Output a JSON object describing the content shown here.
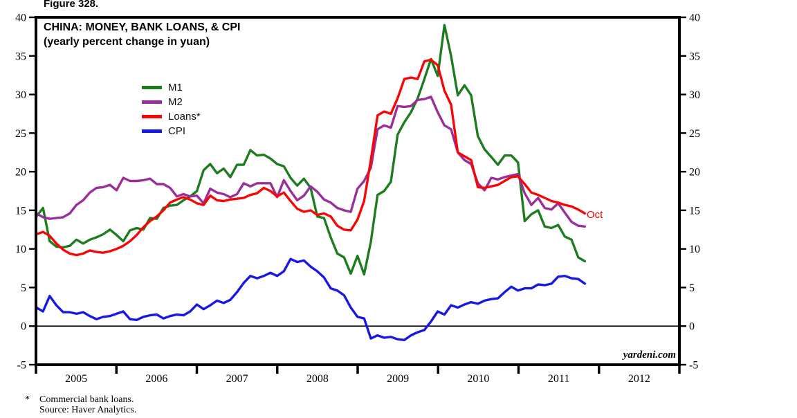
{
  "figure_label": "Figure 328.",
  "header": {
    "title": "CHINA: MONEY, BANK LOANS, & CPI",
    "subtitle": "(yearly percent change in yuan)"
  },
  "watermark": "yardeni.com",
  "footnote": {
    "marker": "*",
    "line1": "Commercial bank loans.",
    "line2": "Source: Haver Analytics."
  },
  "chart_data": {
    "type": "line",
    "title": "CHINA: MONEY, BANK LOANS, & CPI",
    "subtitle": "(yearly percent change in yuan)",
    "x_unit": "month",
    "x_start": "2004-12",
    "x_end": "2011-10",
    "x_tick_years": [
      "2005",
      "2006",
      "2007",
      "2008",
      "2009",
      "2010",
      "2011",
      "2012"
    ],
    "ylim": [
      -5,
      40
    ],
    "y_ticks": [
      40,
      35,
      30,
      25,
      20,
      15,
      10,
      5,
      0,
      -5
    ],
    "y_tick_step": 5,
    "grid": false,
    "zero_line": true,
    "legend_position": "upper-left-inside",
    "axis_color": "#000000",
    "annotation": {
      "text": "Oct",
      "color": "#f20000",
      "attaches_to": "Loans*"
    },
    "series": [
      {
        "name": "M1",
        "color": "#1d7c1d",
        "values": [
          14.2,
          15.3,
          11.0,
          10.3,
          10.2,
          10.4,
          11.2,
          10.7,
          11.2,
          11.5,
          11.9,
          12.5,
          11.8,
          11.0,
          12.4,
          12.7,
          12.5,
          14.0,
          13.9,
          15.3,
          15.6,
          15.7,
          16.3,
          16.8,
          17.5,
          20.2,
          21.0,
          19.8,
          20.4,
          19.3,
          20.9,
          20.9,
          22.8,
          22.1,
          22.2,
          21.7,
          21.0,
          20.7,
          19.2,
          18.2,
          19.1,
          17.9,
          14.2,
          14.0,
          11.5,
          9.4,
          8.9,
          6.8,
          9.1,
          6.7,
          10.9,
          17.0,
          17.5,
          18.7,
          24.8,
          26.4,
          27.7,
          29.5,
          32.0,
          34.6,
          32.4,
          39.0,
          35.0,
          29.9,
          31.2,
          29.9,
          24.6,
          22.9,
          21.9,
          20.9,
          22.1,
          22.1,
          21.2,
          13.6,
          14.5,
          15.0,
          12.9,
          12.7,
          13.1,
          11.6,
          11.2,
          8.9,
          8.4
        ]
      },
      {
        "name": "M2",
        "color": "#9a2e9a",
        "values": [
          14.6,
          14.1,
          13.9,
          14.0,
          14.1,
          14.6,
          15.7,
          16.3,
          17.3,
          17.9,
          18.0,
          18.3,
          17.6,
          19.2,
          18.8,
          18.8,
          18.9,
          19.1,
          18.4,
          18.4,
          17.9,
          16.8,
          17.1,
          16.8,
          16.9,
          15.9,
          17.8,
          17.3,
          17.1,
          16.7,
          17.1,
          18.5,
          18.1,
          18.5,
          18.5,
          18.5,
          16.7,
          18.9,
          17.5,
          16.3,
          16.9,
          18.1,
          17.4,
          16.4,
          16.0,
          15.3,
          15.0,
          14.8,
          17.8,
          18.8,
          20.5,
          25.5,
          26.0,
          25.7,
          28.5,
          28.4,
          28.5,
          29.3,
          29.4,
          29.7,
          27.7,
          26.0,
          25.5,
          22.5,
          21.5,
          21.0,
          18.5,
          17.6,
          19.2,
          19.0,
          19.3,
          19.5,
          19.7,
          17.2,
          15.7,
          16.6,
          15.3,
          15.1,
          15.9,
          14.7,
          13.5,
          13.0,
          12.9
        ]
      },
      {
        "name": "Loans*",
        "color": "#f80606",
        "values": [
          11.9,
          12.2,
          11.7,
          10.7,
          9.9,
          9.4,
          9.2,
          9.4,
          9.8,
          9.6,
          9.5,
          9.7,
          10.0,
          10.4,
          11.0,
          11.8,
          12.8,
          13.6,
          14.2,
          15.0,
          16.0,
          16.4,
          16.7,
          16.4,
          15.9,
          15.7,
          16.9,
          16.3,
          16.2,
          16.4,
          16.5,
          16.6,
          17.0,
          17.2,
          17.9,
          17.5,
          16.8,
          17.3,
          16.2,
          15.2,
          14.8,
          15.0,
          14.4,
          14.6,
          14.2,
          13.0,
          12.5,
          12.4,
          13.8,
          16.2,
          21.5,
          27.3,
          27.8,
          27.5,
          29.5,
          32.0,
          32.2,
          32.0,
          34.3,
          34.5,
          33.8,
          30.5,
          28.7,
          22.5,
          22.0,
          21.5,
          18.0,
          17.9,
          18.1,
          18.3,
          18.8,
          19.3,
          19.4,
          18.4,
          17.3,
          17.0,
          16.6,
          16.2,
          16.0,
          15.7,
          15.5,
          15.1,
          14.6
        ]
      },
      {
        "name": "CPI",
        "color": "#1717e6",
        "values": [
          2.4,
          1.9,
          3.9,
          2.7,
          1.8,
          1.8,
          1.6,
          1.8,
          1.3,
          0.9,
          1.2,
          1.3,
          1.6,
          1.9,
          0.9,
          0.8,
          1.2,
          1.4,
          1.5,
          1.0,
          1.3,
          1.5,
          1.4,
          1.9,
          2.8,
          2.2,
          2.7,
          3.3,
          3.0,
          3.4,
          4.4,
          5.6,
          6.5,
          6.2,
          6.5,
          6.9,
          6.5,
          7.1,
          8.7,
          8.3,
          8.5,
          7.7,
          7.1,
          6.3,
          4.9,
          4.6,
          4.0,
          2.4,
          1.2,
          1.0,
          -1.6,
          -1.2,
          -1.5,
          -1.4,
          -1.7,
          -1.8,
          -1.2,
          -0.8,
          -0.5,
          0.6,
          1.9,
          1.5,
          2.7,
          2.4,
          2.8,
          3.1,
          2.9,
          3.3,
          3.5,
          3.6,
          4.4,
          5.1,
          4.6,
          4.9,
          4.9,
          5.4,
          5.3,
          5.5,
          6.4,
          6.5,
          6.2,
          6.1,
          5.5
        ]
      }
    ]
  }
}
